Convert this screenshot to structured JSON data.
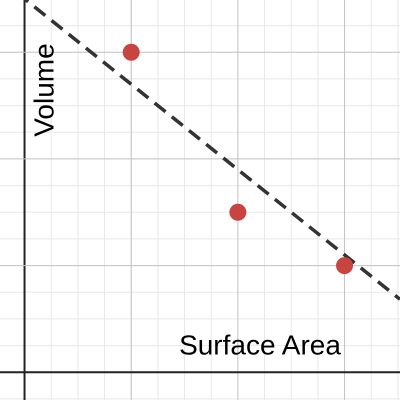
{
  "chart_data": {
    "type": "scatter",
    "x_label": "Surface Area",
    "y_label": "Volume",
    "series": [
      {
        "color": "#c74440",
        "x": [
          1,
          2,
          3
        ],
        "values": [
          3,
          1.5,
          1
        ]
      }
    ],
    "trendline": {
      "slope": -0.8,
      "intercept": 3.5,
      "color": "#333333",
      "dashed": true
    },
    "xlim": [
      -0.23,
      3.52
    ],
    "ylim": [
      -0.26,
      3.49
    ],
    "xticks": [
      0,
      1,
      2,
      3
    ],
    "yticks": [
      0,
      1,
      2,
      3
    ],
    "minor_divisions": 4,
    "grid": true
  }
}
